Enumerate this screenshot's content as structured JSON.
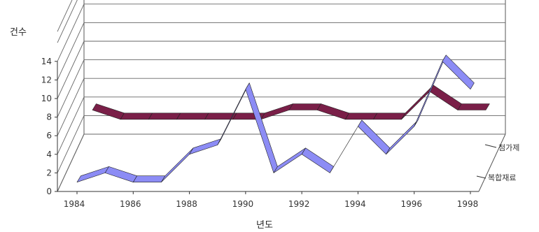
{
  "chart_data": {
    "type": "line",
    "style": "3d-ribbon",
    "ylabel": "건수",
    "xlabel": "년도",
    "ylim": [
      0,
      14
    ],
    "yticks": [
      "0",
      "2",
      "4",
      "6",
      "8",
      "10",
      "12",
      "14"
    ],
    "x": [
      1984,
      1985,
      1986,
      1987,
      1988,
      1989,
      1990,
      1991,
      1992,
      1993,
      1994,
      1995,
      1996,
      1997,
      1998
    ],
    "xtick_labels": [
      "1984",
      "1986",
      "1988",
      "1990",
      "1992",
      "1994",
      "1996",
      "1998"
    ],
    "grid": true,
    "series": [
      {
        "name": "복합재료",
        "color": "#8c8cf5",
        "values": [
          1,
          2,
          1,
          1,
          4,
          5,
          11,
          2,
          4,
          2,
          7,
          4,
          7,
          14,
          11
        ]
      },
      {
        "name": "첨가제",
        "color": "#7a1f48",
        "values": [
          5,
          4,
          4,
          4,
          4,
          4,
          4,
          5,
          5,
          4,
          4,
          4,
          7,
          5,
          5
        ]
      }
    ]
  }
}
